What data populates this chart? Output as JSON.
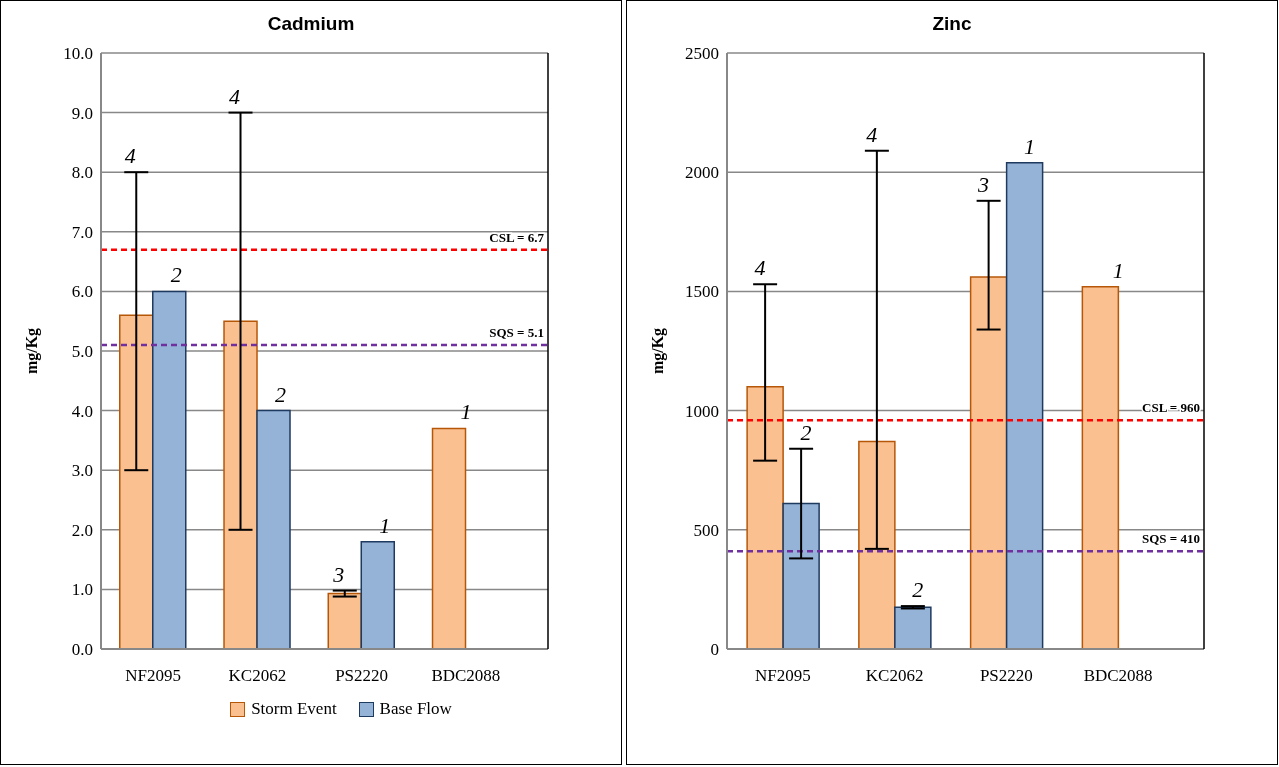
{
  "chart_data": [
    {
      "type": "bar",
      "title": "Cadmium",
      "ylabel": "mg/Kg",
      "categories": [
        "NF2095",
        "KC2062",
        "PS2220",
        "BDC2088"
      ],
      "series": [
        {
          "name": "Storm Event",
          "color": "#fac090",
          "values": [
            5.6,
            5.5,
            0.93,
            3.7
          ],
          "errors": [
            [
              3.0,
              8.0
            ],
            [
              2.0,
              9.0
            ],
            [
              0.88,
              0.98
            ],
            null
          ]
        },
        {
          "name": "Base Flow",
          "color": "#95b3d7",
          "values": [
            6.0,
            4.0,
            1.8,
            null
          ]
        }
      ],
      "annotations": [
        "4",
        "2",
        "4",
        "2",
        "3",
        "1",
        "1"
      ],
      "ylim": [
        0,
        10
      ],
      "yticks": [
        {
          "value": 0,
          "label": "0.0"
        },
        {
          "value": 1,
          "label": "1.0"
        },
        {
          "value": 2,
          "label": "2.0"
        },
        {
          "value": 3,
          "label": "3.0"
        },
        {
          "value": 4,
          "label": "4.0"
        },
        {
          "value": 5,
          "label": "5.0"
        },
        {
          "value": 6,
          "label": "6.0"
        },
        {
          "value": 7,
          "label": "7.0"
        },
        {
          "value": 8,
          "label": "8.0"
        },
        {
          "value": 9,
          "label": "9.0"
        },
        {
          "value": 10,
          "label": "10.0"
        }
      ],
      "ref_lines": [
        {
          "axis": "y",
          "value": 6.7,
          "label": "CSL = 6.7",
          "color": "#ff0000",
          "line_style": "dashed"
        },
        {
          "axis": "y",
          "value": 5.1,
          "label": "SQS = 5.1",
          "color": "#7030a0",
          "line_style": "dashed"
        }
      ],
      "grid": "y",
      "legend": "bottom"
    },
    {
      "type": "bar",
      "title": "Zinc",
      "ylabel": "mg/Kg",
      "categories": [
        "NF2095",
        "KC2062",
        "PS2220",
        "BDC2088"
      ],
      "series": [
        {
          "color": "#fac090",
          "values": [
            1100,
            870,
            1560,
            1520
          ],
          "errors": [
            [
              790,
              1530
            ],
            [
              420,
              2090
            ],
            [
              1340,
              1880
            ],
            null
          ]
        },
        {
          "color": "#95b3d7",
          "values": [
            610,
            175,
            2040,
            null
          ],
          "errors": [
            [
              380,
              840
            ],
            [
              170,
              180
            ],
            null,
            null
          ]
        }
      ],
      "annotations": [
        "4",
        "2",
        "4",
        "2",
        "3",
        "1",
        "1"
      ],
      "ylim": [
        0,
        2500
      ],
      "yticks": [
        0,
        500,
        1000,
        1500,
        2000,
        2500
      ],
      "ref_lines": [
        {
          "axis": "y",
          "value": 960,
          "label": "CSL = 960",
          "color": "#ff0000",
          "line_style": "dashed"
        },
        {
          "axis": "y",
          "value": 410,
          "label": "SQS = 410",
          "color": "#7030a0",
          "line_style": "dashed"
        }
      ],
      "grid": "y"
    }
  ]
}
